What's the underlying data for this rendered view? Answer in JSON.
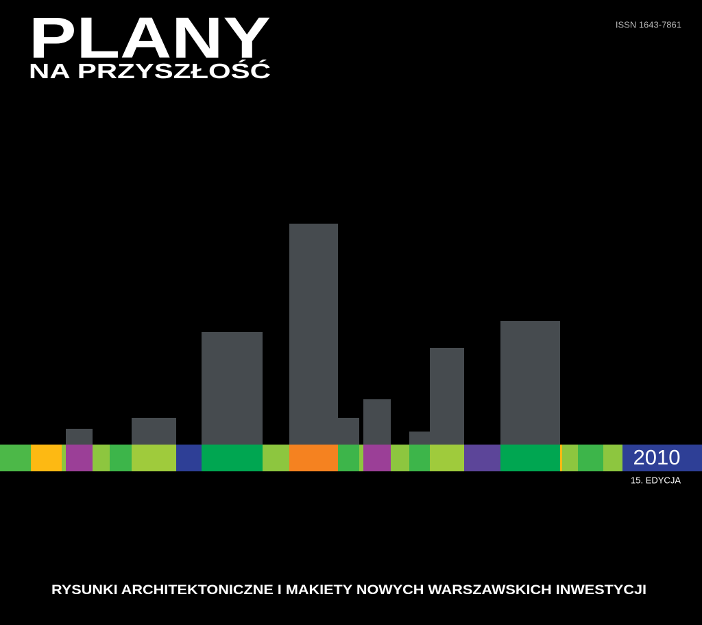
{
  "cover": {
    "title": "PLANY",
    "subtitle": "NA PRZYSZŁOŚĆ",
    "issn": "ISSN 1643-7861",
    "year": "2010",
    "edition": "15. EDYCJA",
    "tagline": "RYSUNKI ARCHITEKTONICZNE I MAKIETY NOWYCH WARSZAWSKICH INWESTYCJI"
  }
}
